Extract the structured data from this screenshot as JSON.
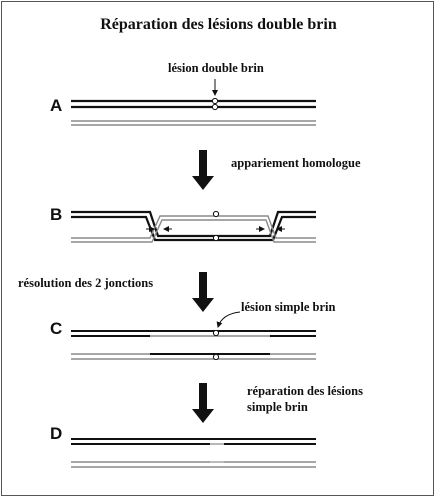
{
  "title": "Réparation des lésions double brin",
  "steps": [
    "A",
    "B",
    "C",
    "D"
  ],
  "annotations": {
    "double_strand_lesion": "lésion double brin",
    "homologous_pairing": "appariement homologue",
    "junction_resolution": "résolution des 2 jonctions",
    "single_strand_lesion": "lésion simple brin",
    "lesion_repair_line1": "réparation des lésions",
    "lesion_repair_line2": "simple brin"
  },
  "colors": {
    "strand_dark": "#111111",
    "strand_light": "#8a8a8a",
    "repair_patch": "#b8b8b8"
  }
}
